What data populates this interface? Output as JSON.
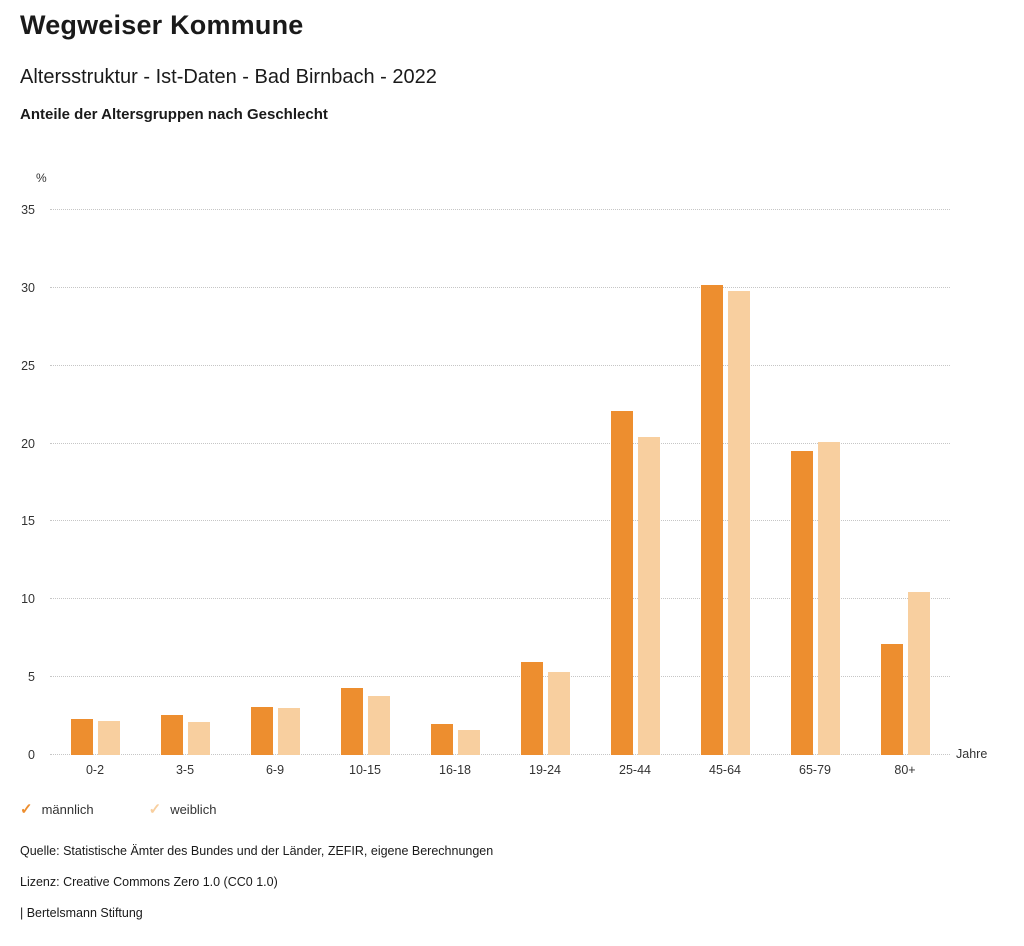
{
  "header": {
    "title": "Wegweiser Kommune",
    "subtitle": "Altersstruktur - Ist-Daten - Bad Birnbach - 2022",
    "chart_heading": "Anteile der Altersgruppen nach Geschlecht"
  },
  "chart_data": {
    "type": "bar",
    "categories": [
      "0-2",
      "3-5",
      "6-9",
      "10-15",
      "16-18",
      "19-24",
      "25-44",
      "45-64",
      "65-79",
      "80+"
    ],
    "series": [
      {
        "name": "männlich",
        "color": "#ED8E2F",
        "values": [
          2.3,
          2.6,
          3.1,
          4.3,
          2.0,
          6.0,
          22.1,
          30.2,
          19.5,
          7.1
        ]
      },
      {
        "name": "weiblich",
        "color": "#F8CF9F",
        "values": [
          2.2,
          2.1,
          3.0,
          3.8,
          1.6,
          5.3,
          20.4,
          29.8,
          20.1,
          10.5
        ]
      }
    ],
    "title": "Anteile der Altersgruppen nach Geschlecht",
    "xlabel": "Jahre",
    "ylabel": "%",
    "ylim": [
      0,
      35
    ],
    "yticks": [
      0,
      5,
      10,
      15,
      20,
      25,
      30,
      35
    ],
    "grid": true,
    "gridline_color": "#c6c6c6",
    "legend_position": "bottom"
  },
  "legend": {
    "check_glyph": "✓"
  },
  "footer": {
    "source": "Quelle: Statistische Ämter des Bundes und der Länder, ZEFIR, eigene Berechnungen",
    "license": "Lizenz: Creative Commons Zero 1.0 (CC0 1.0)",
    "attribution": "| Bertelsmann Stiftung"
  }
}
